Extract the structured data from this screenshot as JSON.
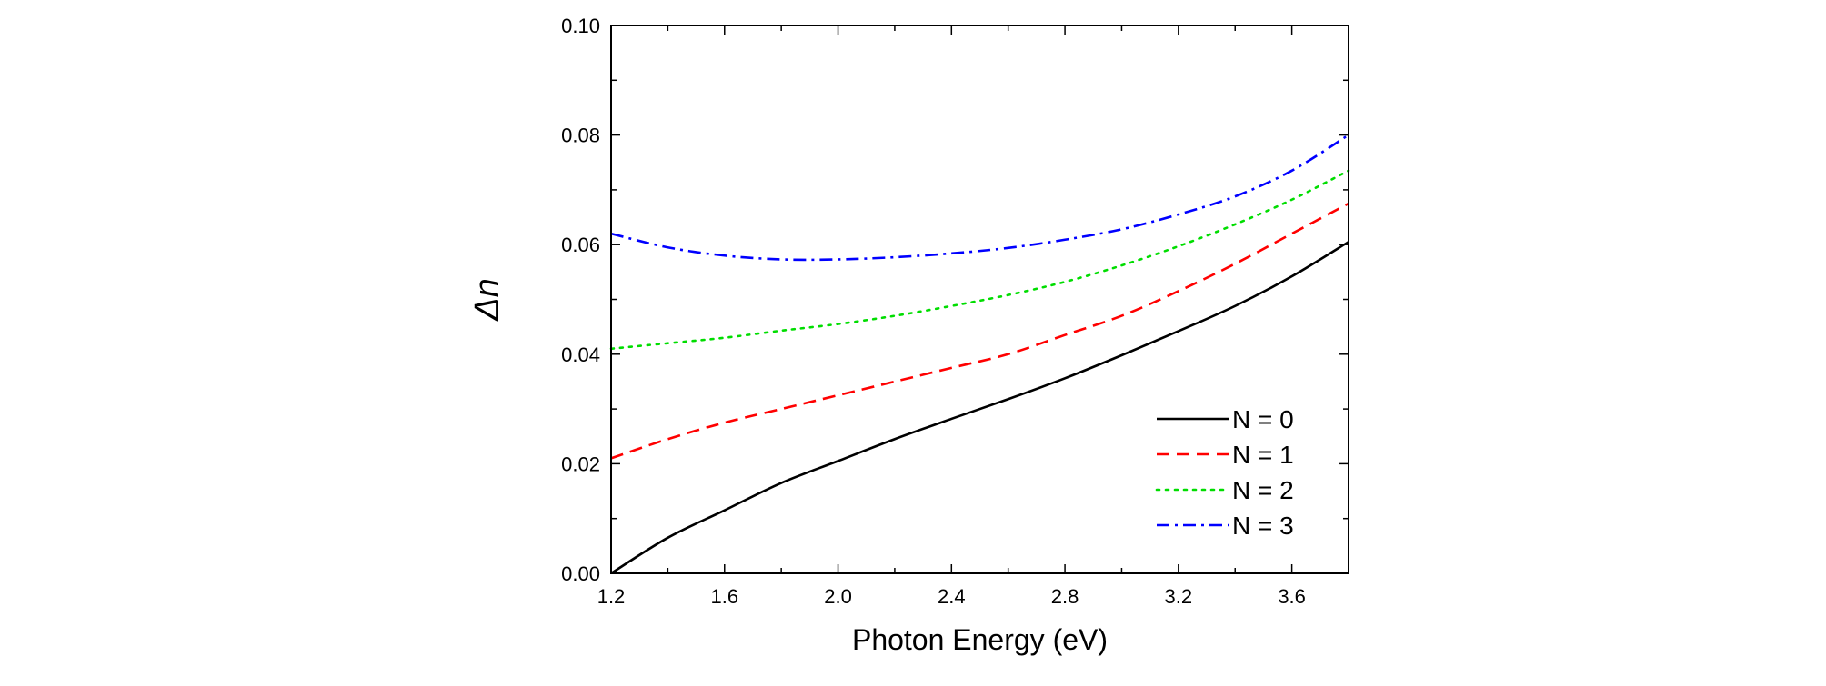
{
  "chart_data": {
    "type": "line",
    "title": "",
    "xlabel": "Photon Energy (eV)",
    "ylabel": "Δn",
    "xlim": [
      1.2,
      3.8
    ],
    "ylim": [
      0.0,
      0.1
    ],
    "xticks": [
      1.2,
      1.6,
      2.0,
      2.4,
      2.8,
      3.2,
      3.6
    ],
    "xtick_labels": [
      "1.2",
      "1.6",
      "2.0",
      "2.4",
      "2.8",
      "3.2",
      "3.6"
    ],
    "yticks": [
      0.0,
      0.02,
      0.04,
      0.06,
      0.08,
      0.1
    ],
    "ytick_labels": [
      "0.00",
      "0.02",
      "0.04",
      "0.06",
      "0.08",
      "0.10"
    ],
    "grid": false,
    "legend_position": "bottom-right",
    "x": [
      1.2,
      1.4,
      1.6,
      1.8,
      2.0,
      2.2,
      2.4,
      2.6,
      2.8,
      3.0,
      3.2,
      3.4,
      3.6,
      3.8
    ],
    "series": [
      {
        "name": "N = 0",
        "color": "#000000",
        "dash": "solid",
        "values": [
          0.0,
          0.0065,
          0.0115,
          0.0165,
          0.0205,
          0.0245,
          0.0282,
          0.0318,
          0.0356,
          0.0398,
          0.0442,
          0.0488,
          0.0542,
          0.0605
        ]
      },
      {
        "name": "N = 1",
        "color": "#ff0000",
        "dash": "dashed",
        "values": [
          0.021,
          0.0245,
          0.0275,
          0.03,
          0.0325,
          0.035,
          0.0375,
          0.04,
          0.0435,
          0.047,
          0.0515,
          0.0565,
          0.062,
          0.0675
        ]
      },
      {
        "name": "N = 2",
        "color": "#00dd00",
        "dash": "dotted",
        "values": [
          0.041,
          0.042,
          0.043,
          0.0443,
          0.0455,
          0.047,
          0.0488,
          0.0508,
          0.0532,
          0.0562,
          0.0597,
          0.0637,
          0.0682,
          0.0735
        ]
      },
      {
        "name": "N = 3",
        "color": "#0000ff",
        "dash": "dash-dot",
        "values": [
          0.062,
          0.0595,
          0.058,
          0.0573,
          0.0573,
          0.0577,
          0.0584,
          0.0594,
          0.0609,
          0.0628,
          0.0655,
          0.0688,
          0.0735,
          0.08
        ]
      }
    ]
  }
}
